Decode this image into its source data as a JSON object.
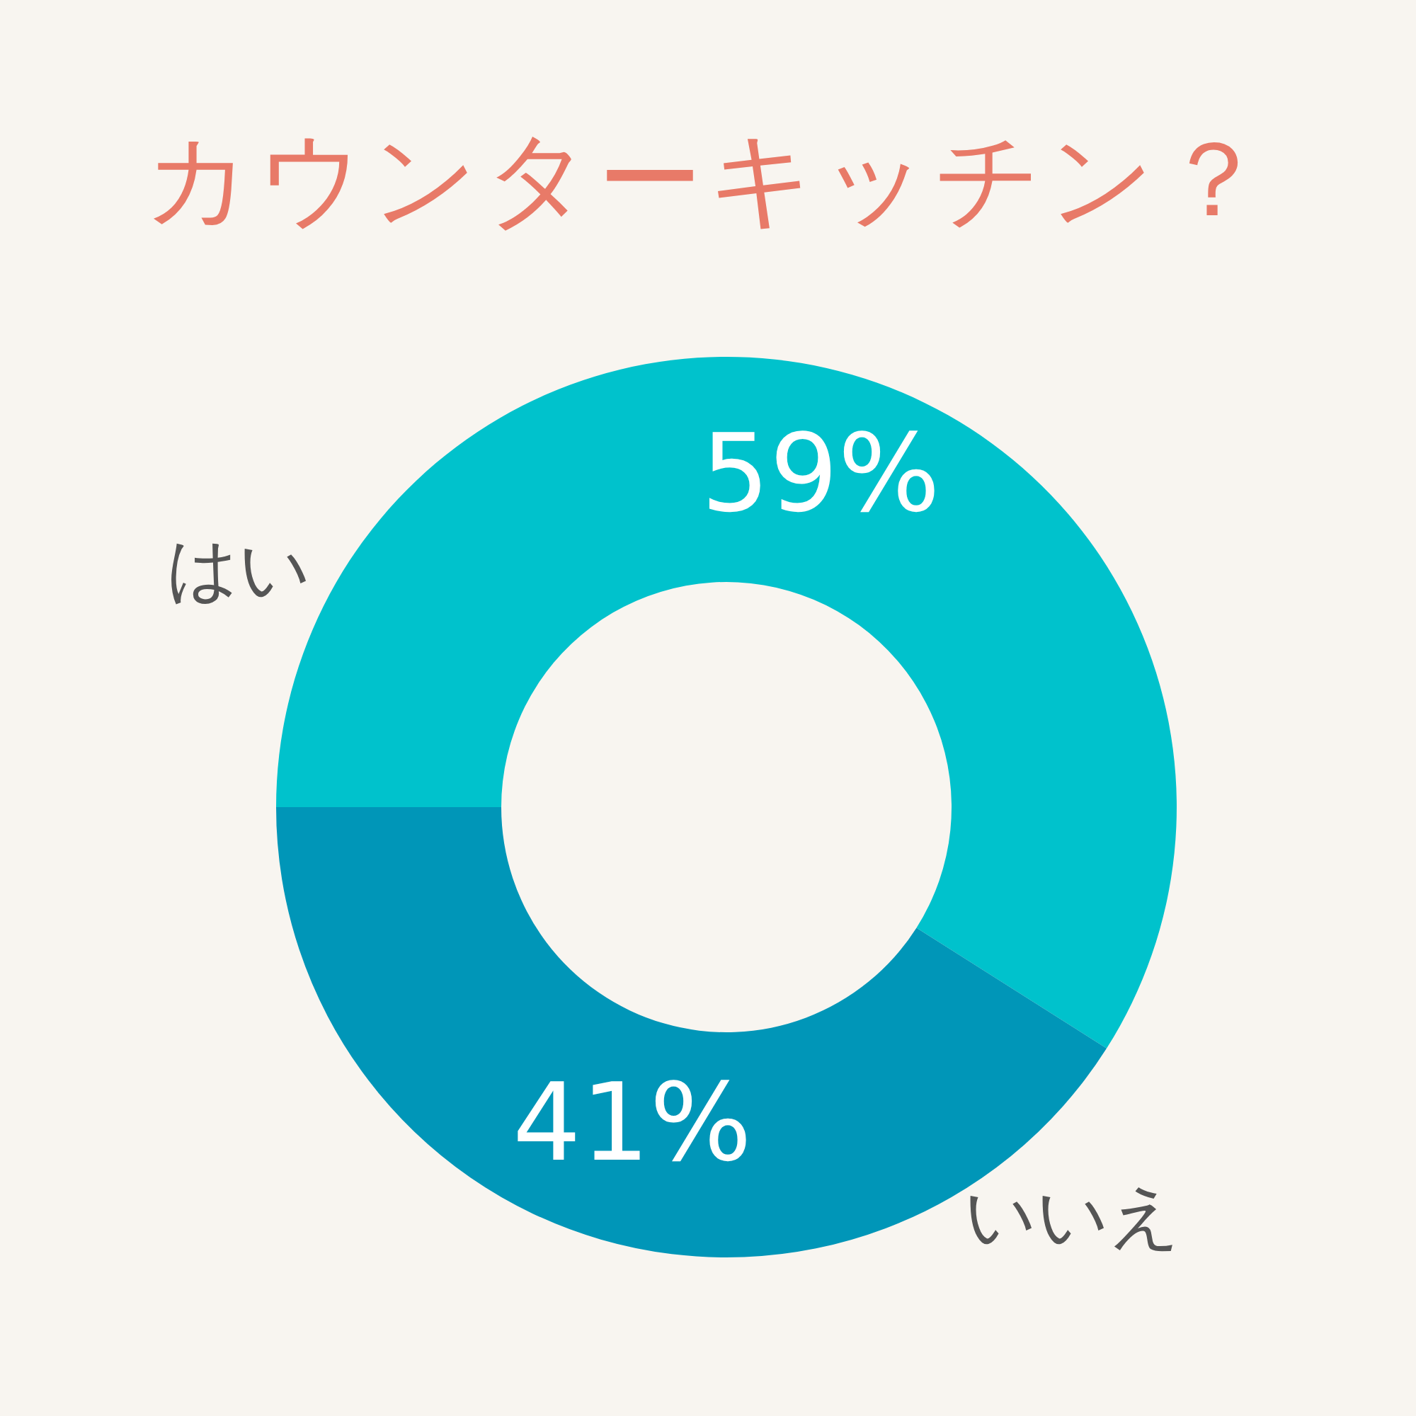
{
  "chart_data": {
    "type": "donut",
    "title": "カウンターキッチン？",
    "categories": [
      "はい",
      "いいえ"
    ],
    "values": [
      59,
      41
    ],
    "colors": [
      "#00c2cc",
      "#0096b8"
    ],
    "value_labels": [
      "59%",
      "41%"
    ],
    "legend": false
  }
}
